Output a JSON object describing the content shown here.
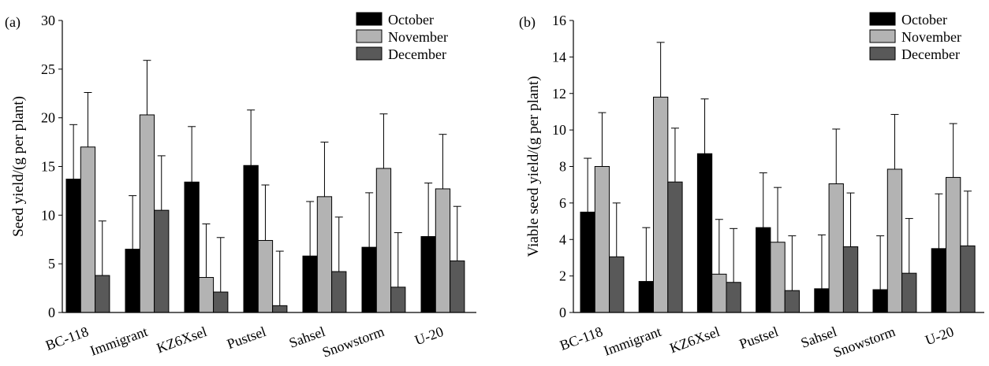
{
  "chart_data": [
    {
      "type": "bar",
      "panel_label": "(a)",
      "categories": [
        "BC-118",
        "Immigrant",
        "KZ6Xsel",
        "Pustsel",
        "Sahsel",
        "Snowstorm",
        "U-20"
      ],
      "series": [
        {
          "name": "October",
          "color": "#000000",
          "values": [
            13.7,
            6.5,
            13.4,
            15.1,
            5.8,
            6.7,
            7.8
          ],
          "error": [
            5.6,
            5.5,
            5.7,
            5.7,
            5.6,
            5.6,
            5.5
          ]
        },
        {
          "name": "November",
          "color": "#b3b3b3",
          "values": [
            17.0,
            20.3,
            3.6,
            7.4,
            11.9,
            14.8,
            12.7
          ],
          "error": [
            5.6,
            5.6,
            5.5,
            5.7,
            5.6,
            5.6,
            5.6
          ]
        },
        {
          "name": "December",
          "color": "#595959",
          "values": [
            3.8,
            10.5,
            2.1,
            0.7,
            4.2,
            2.6,
            5.3
          ],
          "error": [
            5.6,
            5.6,
            5.6,
            5.6,
            5.6,
            5.6,
            5.6
          ]
        }
      ],
      "xlabel": "",
      "ylabel": "Seed yield/(g per plant)",
      "ylim": [
        0,
        30
      ],
      "yticks": [
        0,
        5,
        10,
        15,
        20,
        25,
        30
      ],
      "legend": "top-right",
      "grid": false
    },
    {
      "type": "bar",
      "panel_label": "(b)",
      "categories": [
        "BC-118",
        "Immigrant",
        "KZ6Xsel",
        "Pustsel",
        "Sahsel",
        "Snowstorm",
        "U-20"
      ],
      "series": [
        {
          "name": "October",
          "color": "#000000",
          "values": [
            5.5,
            1.7,
            8.7,
            4.65,
            1.3,
            1.25,
            3.5
          ],
          "error": [
            2.95,
            2.95,
            3.0,
            3.0,
            2.95,
            2.95,
            3.0
          ]
        },
        {
          "name": "November",
          "color": "#b3b3b3",
          "values": [
            8.0,
            11.8,
            2.1,
            3.85,
            7.05,
            7.85,
            7.4
          ],
          "error": [
            2.95,
            3.0,
            3.0,
            3.0,
            3.0,
            3.0,
            2.95
          ]
        },
        {
          "name": "December",
          "color": "#595959",
          "values": [
            3.05,
            7.15,
            1.65,
            1.2,
            3.6,
            2.15,
            3.65
          ],
          "error": [
            2.95,
            2.95,
            2.95,
            3.0,
            2.95,
            3.0,
            3.0
          ]
        }
      ],
      "xlabel": "",
      "ylabel": "Viable seed yield/(g per plant)",
      "ylim": [
        0,
        16
      ],
      "yticks": [
        0,
        2,
        4,
        6,
        8,
        10,
        12,
        14,
        16
      ],
      "legend": "top-right",
      "grid": false
    }
  ]
}
